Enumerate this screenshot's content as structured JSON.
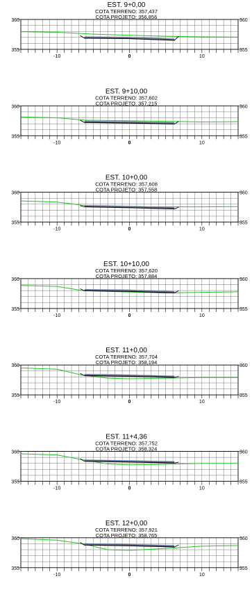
{
  "chart_data": {
    "type": "cross-section",
    "x_ticks": [
      "-10",
      "0",
      "10"
    ],
    "y_ticks": [
      "355",
      "360"
    ],
    "xlim": [
      -15,
      15
    ],
    "ylim": [
      355,
      360
    ],
    "colors": {
      "terrain": "#22c422",
      "grid": "#777777",
      "road": "#000000",
      "layer": "#7080b0"
    },
    "sections": [
      {
        "title": "EST. 9+0,00",
        "terreno": "COTA TERRENO: 357,437",
        "projeto": "COTA PROJETO: 356,856",
        "terrain": [
          [
            -15,
            357.95
          ],
          [
            -10,
            357.85
          ],
          [
            -5,
            357.55
          ],
          [
            0,
            357.35
          ],
          [
            5,
            357.2
          ],
          [
            10,
            357.1
          ],
          [
            15,
            357.05
          ]
        ],
        "road": [
          [
            -6.8,
            357.3
          ],
          [
            -6.2,
            356.86
          ],
          [
            0,
            356.78
          ],
          [
            6.2,
            356.5
          ],
          [
            6.8,
            357.2
          ]
        ]
      },
      {
        "title": "EST. 9+10,00",
        "terreno": "COTA TERRENO: 357,602",
        "projeto": "COTA PROJETO: 357,215",
        "terrain": [
          [
            -15,
            358.15
          ],
          [
            -10,
            358.0
          ],
          [
            -6,
            357.6
          ],
          [
            0,
            357.5
          ],
          [
            5,
            357.4
          ],
          [
            10,
            357.3
          ],
          [
            15,
            357.35
          ]
        ],
        "road": [
          [
            -6.8,
            357.6
          ],
          [
            -6.2,
            357.2
          ],
          [
            0,
            357.1
          ],
          [
            6.2,
            356.95
          ],
          [
            6.8,
            357.4
          ]
        ]
      },
      {
        "title": "EST. 10+0,00",
        "terreno": "COTA TERRENO: 357,608",
        "projeto": "COTA PROJETO: 357,558",
        "terrain": [
          [
            -15,
            358.55
          ],
          [
            -10,
            358.35
          ],
          [
            -6,
            357.75
          ],
          [
            0,
            357.6
          ],
          [
            5,
            357.55
          ],
          [
            10,
            357.55
          ],
          [
            15,
            357.6
          ]
        ],
        "road": [
          [
            -6.8,
            357.75
          ],
          [
            -6.2,
            357.55
          ],
          [
            0,
            357.4
          ],
          [
            6.2,
            357.2
          ],
          [
            6.8,
            357.5
          ]
        ]
      },
      {
        "title": "EST. 10+10,00",
        "terreno": "COTA TERRENO: 357,620",
        "projeto": "COTA PROJETO: 357,884",
        "terrain": [
          [
            -15,
            358.85
          ],
          [
            -10,
            358.7
          ],
          [
            -6.5,
            358.0
          ],
          [
            0,
            357.75
          ],
          [
            5,
            357.6
          ],
          [
            10,
            357.7
          ],
          [
            15,
            357.8
          ]
        ],
        "road": [
          [
            -6.8,
            358.3
          ],
          [
            -6.2,
            357.95
          ],
          [
            0,
            357.85
          ],
          [
            6.2,
            357.6
          ],
          [
            6.8,
            358.0
          ]
        ]
      },
      {
        "title": "EST. 11+0,00",
        "terreno": "COTA TERRENO: 357,704",
        "projeto": "COTA PROJETO: 358,194",
        "terrain": [
          [
            -15,
            359.5
          ],
          [
            -10,
            359.3
          ],
          [
            -6.5,
            358.3
          ],
          [
            -3,
            357.8
          ],
          [
            0,
            357.7
          ],
          [
            5,
            357.8
          ],
          [
            10,
            357.9
          ],
          [
            15,
            357.9
          ]
        ],
        "road": [
          [
            -6.8,
            358.6
          ],
          [
            -6.2,
            358.2
          ],
          [
            0,
            358.1
          ],
          [
            6.2,
            357.9
          ],
          [
            6.8,
            358.1
          ]
        ]
      },
      {
        "title": "EST. 11+4,36",
        "terreno": "COTA TERRENO: 357,752",
        "projeto": "COTA PROJETO: 358,324",
        "terrain": [
          [
            -15,
            359.6
          ],
          [
            -10,
            359.4
          ],
          [
            -6.5,
            358.6
          ],
          [
            -3,
            357.9
          ],
          [
            0,
            357.75
          ],
          [
            5,
            357.85
          ],
          [
            10,
            358.0
          ],
          [
            15,
            358.0
          ]
        ],
        "road": [
          [
            -6.8,
            358.75
          ],
          [
            -6.2,
            358.33
          ],
          [
            0,
            358.2
          ],
          [
            6.2,
            358.05
          ],
          [
            6.8,
            358.2
          ]
        ]
      },
      {
        "title": "EST. 12+0,00",
        "terreno": "COTA TERRENO: 357,921",
        "projeto": "COTA PROJETO: 358,765",
        "terrain": [
          [
            -15,
            359.85
          ],
          [
            -10,
            359.6
          ],
          [
            -6.5,
            359.0
          ],
          [
            -3,
            358.0
          ],
          [
            0,
            357.9
          ],
          [
            5,
            358.2
          ],
          [
            10,
            358.6
          ],
          [
            15,
            358.7
          ]
        ],
        "road": [
          [
            -6.8,
            359.2
          ],
          [
            -6.2,
            358.77
          ],
          [
            0,
            358.65
          ],
          [
            6.2,
            358.45
          ],
          [
            6.8,
            358.8
          ]
        ]
      }
    ]
  }
}
